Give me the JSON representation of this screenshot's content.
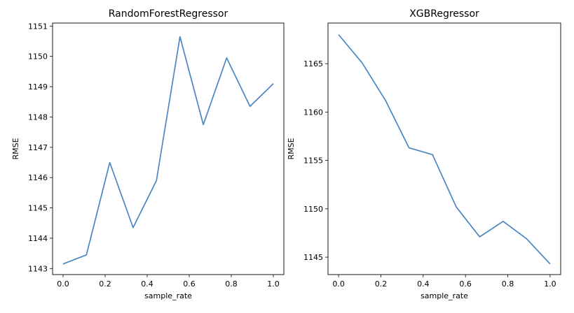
{
  "chart_data": [
    {
      "type": "line",
      "title": "RandomForestRegressor",
      "xlabel": "sample_rate",
      "ylabel": "RMSE",
      "xlim": [
        -0.05,
        1.05
      ],
      "ylim": [
        1142.8,
        1151.1
      ],
      "xticks": [
        0.0,
        0.2,
        0.4,
        0.6,
        0.8,
        1.0
      ],
      "xtick_labels": [
        "0.0",
        "0.2",
        "0.4",
        "0.6",
        "0.8",
        "1.0"
      ],
      "yticks": [
        1143,
        1144,
        1145,
        1146,
        1147,
        1148,
        1149,
        1150,
        1151
      ],
      "ytick_labels": [
        "1143",
        "1144",
        "1145",
        "1146",
        "1147",
        "1148",
        "1149",
        "1150",
        "1151"
      ],
      "grid": false,
      "series": [
        {
          "color": "#4c86c0",
          "x": [
            0.0,
            0.111,
            0.222,
            0.333,
            0.444,
            0.556,
            0.667,
            0.778,
            0.889,
            1.0
          ],
          "y": [
            1143.15,
            1143.45,
            1146.5,
            1144.35,
            1145.9,
            1150.65,
            1147.75,
            1149.95,
            1148.35,
            1149.1
          ]
        }
      ]
    },
    {
      "type": "line",
      "title": "XGBRegressor",
      "xlabel": "sample_rate",
      "ylabel": "RMSE",
      "xlim": [
        -0.05,
        1.05
      ],
      "ylim": [
        1143.2,
        1169.2
      ],
      "xticks": [
        0.0,
        0.2,
        0.4,
        0.6,
        0.8,
        1.0
      ],
      "xtick_labels": [
        "0.0",
        "0.2",
        "0.4",
        "0.6",
        "0.8",
        "1.0"
      ],
      "yticks": [
        1145,
        1150,
        1155,
        1160,
        1165
      ],
      "ytick_labels": [
        "1145",
        "1150",
        "1155",
        "1160",
        "1165"
      ],
      "grid": false,
      "series": [
        {
          "color": "#4c86c0",
          "x": [
            0.0,
            0.111,
            0.222,
            0.333,
            0.444,
            0.556,
            0.667,
            0.778,
            0.889,
            1.0
          ],
          "y": [
            1168.0,
            1165.1,
            1161.2,
            1156.3,
            1155.6,
            1150.2,
            1147.1,
            1148.7,
            1146.9,
            1144.3
          ]
        }
      ]
    }
  ]
}
